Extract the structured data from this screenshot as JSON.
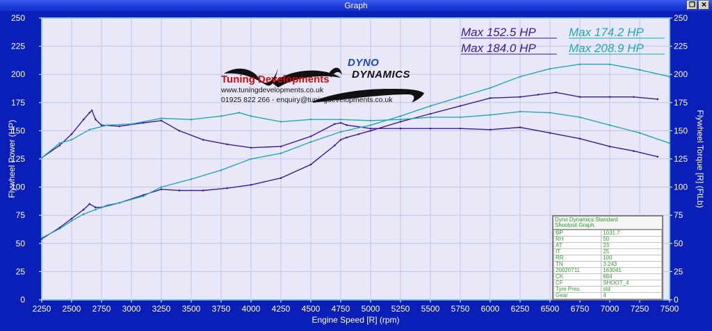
{
  "window": {
    "title": "Graph"
  },
  "chart_data": {
    "type": "line",
    "xlabel": "Engine Speed [R] (rpm)",
    "ylabel_left": "Flywheel Power (HP)",
    "ylabel_right": "Flywheel Torque [R] (FtLb)",
    "xlim": [
      2250,
      7500
    ],
    "ylim": [
      0,
      250
    ],
    "ylim_right": [
      0,
      250
    ],
    "x_ticks": [
      2250,
      2500,
      2750,
      3000,
      3250,
      3500,
      3750,
      4000,
      4250,
      4500,
      4750,
      5000,
      5250,
      5500,
      5750,
      6000,
      6250,
      6500,
      6750,
      7000,
      7250,
      7500
    ],
    "y_ticks": [
      0,
      25,
      50,
      75,
      100,
      125,
      150,
      175,
      200,
      225,
      250
    ],
    "grid": true,
    "max_labels": [
      {
        "text": "Max 152.5 HP",
        "color": "#3a1a9a"
      },
      {
        "text": "Max 174.2 HP",
        "color": "#20a8b8"
      },
      {
        "text": "Max 184.0 HP",
        "color": "#3a1a9a"
      },
      {
        "text": "Max 208.9 HP",
        "color": "#20a8b8"
      }
    ],
    "series": [
      {
        "color": "#3a1a9a",
        "axis": "left",
        "x": [
          2250,
          2400,
          2500,
          2600,
          2650,
          2700,
          2750,
          2900,
          3100,
          3250,
          3400,
          3600,
          3800,
          4000,
          4250,
          4500,
          4700,
          4750,
          4800,
          4900,
          5000,
          5250,
          5500,
          5750,
          6000,
          6250,
          6400,
          6550,
          6750,
          7000,
          7200,
          7400
        ],
        "values": [
          54,
          64,
          72,
          80,
          85,
          82,
          82,
          86,
          93,
          98,
          97,
          97,
          99,
          102,
          108,
          120,
          137,
          142,
          144,
          147,
          150,
          158,
          165,
          172,
          179,
          180,
          182,
          184,
          180,
          180,
          180,
          178
        ]
      },
      {
        "color": "#3a1a9a",
        "axis": "right",
        "x": [
          2250,
          2400,
          2500,
          2600,
          2650,
          2670,
          2700,
          2750,
          2900,
          3100,
          3250,
          3400,
          3600,
          3800,
          4000,
          4250,
          4500,
          4700,
          4750,
          4800,
          5000,
          5250,
          5500,
          5750,
          6000,
          6250,
          6500,
          6750,
          7000,
          7200,
          7400
        ],
        "values": [
          126,
          137,
          147,
          160,
          166,
          168,
          160,
          155,
          154,
          157,
          159,
          150,
          142,
          138,
          135,
          136,
          145,
          156,
          157,
          155,
          152,
          152,
          152,
          152,
          151,
          153,
          148,
          143,
          136,
          132,
          127
        ]
      },
      {
        "color": "#20a8b8",
        "axis": "left",
        "x": [
          2250,
          2400,
          2500,
          2600,
          2700,
          2800,
          2900,
          3100,
          3250,
          3500,
          3750,
          4000,
          4250,
          4500,
          4750,
          5000,
          5250,
          5500,
          5750,
          6000,
          6250,
          6500,
          6750,
          7000,
          7250,
          7500
        ],
        "values": [
          55,
          63,
          70,
          76,
          80,
          84,
          86,
          92,
          100,
          107,
          115,
          125,
          130,
          140,
          149,
          155,
          163,
          172,
          180,
          188,
          198,
          205,
          209,
          209,
          204,
          198
        ]
      },
      {
        "color": "#20a8b8",
        "axis": "right",
        "x": [
          2250,
          2400,
          2500,
          2650,
          2800,
          3000,
          3250,
          3500,
          3750,
          3900,
          4000,
          4250,
          4500,
          4750,
          5000,
          5250,
          5500,
          5750,
          6000,
          6250,
          6500,
          6750,
          7000,
          7250,
          7500
        ],
        "values": [
          126,
          139,
          142,
          151,
          155,
          156,
          161,
          160,
          163,
          166,
          163,
          158,
          160,
          160,
          159,
          160,
          162,
          162,
          164,
          167,
          166,
          162,
          155,
          148,
          139
        ]
      }
    ]
  },
  "logos": {
    "tuning_name": "Tuning Developments",
    "website": "www.tuningdevelopments.co.uk",
    "contact_line": "01925 822 266 - enquiry@tuningdevelopments.co.uk",
    "dyno_top": "DYNO",
    "dyno_bottom": "DYNAMICS"
  },
  "info_table": {
    "header_line1": "Dyno Dynamics Standard",
    "header_line2": "Shootout Graph.",
    "rows": [
      [
        "BP",
        "1031.7"
      ],
      [
        "RH",
        "50"
      ],
      [
        "AT",
        "23"
      ],
      [
        "IT",
        "25"
      ],
      [
        "RR",
        "100"
      ],
      [
        "TN",
        "3.243"
      ],
      [
        "20020711",
        "163041"
      ],
      [
        "CK",
        "684"
      ],
      [
        "CF",
        "SHOOT_4"
      ],
      [
        "Tyre Pres.",
        "std"
      ],
      [
        "Gear",
        "4"
      ]
    ]
  }
}
